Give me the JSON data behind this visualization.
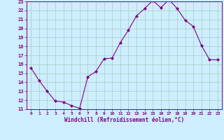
{
  "x": [
    0,
    1,
    2,
    3,
    4,
    5,
    6,
    7,
    8,
    9,
    10,
    11,
    12,
    13,
    14,
    15,
    16,
    17,
    18,
    19,
    20,
    21,
    22,
    23
  ],
  "y": [
    15.6,
    14.2,
    13.0,
    11.9,
    11.8,
    11.4,
    11.1,
    14.6,
    15.2,
    16.6,
    16.7,
    18.4,
    19.8,
    21.4,
    22.2,
    23.1,
    22.3,
    23.2,
    22.2,
    20.9,
    20.2,
    18.1,
    16.5,
    16.5
  ],
  "ylim": [
    11,
    23
  ],
  "yticks": [
    11,
    12,
    13,
    14,
    15,
    16,
    17,
    18,
    19,
    20,
    21,
    22,
    23
  ],
  "xticks": [
    0,
    1,
    2,
    3,
    4,
    5,
    6,
    7,
    8,
    9,
    10,
    11,
    12,
    13,
    14,
    15,
    16,
    17,
    18,
    19,
    20,
    21,
    22,
    23
  ],
  "xlabel": "Windchill (Refroidissement éolien,°C)",
  "line_color": "#800080",
  "marker": "D",
  "marker_size": 2,
  "bg_color": "#cceeff",
  "grid_color": "#aaccbb",
  "figsize": [
    3.2,
    2.0
  ],
  "dpi": 100
}
